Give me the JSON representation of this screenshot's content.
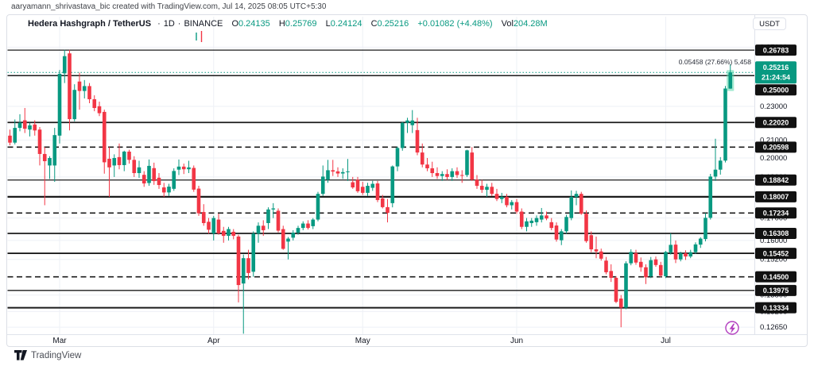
{
  "attribution": "aaryamann_shrivastava_bic created with TradingView.com, Jul 14, 2025 08:05 UTC+5:30",
  "watermark": {
    "logo_text": "TradingView"
  },
  "legend": {
    "symbol": "Hedera Hashgraph / TetherUS",
    "sep": "·",
    "interval": "1D",
    "exchange": "BINANCE",
    "o_label": "O",
    "o": "0.24135",
    "h_label": "H",
    "h": "0.25769",
    "l_label": "L",
    "l": "0.24124",
    "c_label": "C",
    "c": "0.25216",
    "change": "+0.01082 (+4.48%)",
    "vol_label": "Vol",
    "vol": "204.28M"
  },
  "annotation": {
    "measure": "0.05458 (27.66%) 5,458"
  },
  "axis": {
    "currency": "USDT",
    "countdown": "21:24:54",
    "current_price": "0.25216",
    "price_ticks": [
      {
        "price": 0.27,
        "label": "0.27000"
      },
      {
        "price": 0.23,
        "label": "0.23000"
      },
      {
        "price": 0.21,
        "label": "0.21000"
      },
      {
        "price": 0.2,
        "label": "0.20000"
      },
      {
        "price": 0.19,
        "label": "0.19000"
      },
      {
        "price": 0.17,
        "label": "0.17000"
      },
      {
        "price": 0.16,
        "label": "0.16000"
      },
      {
        "price": 0.152,
        "label": "0.15200"
      },
      {
        "price": 0.138,
        "label": "0.13800"
      },
      {
        "price": 0.132,
        "label": "0.13200"
      },
      {
        "price": 0.1265,
        "label": "0.12650"
      }
    ],
    "month_ticks": [
      {
        "label": "Mar",
        "i": 10
      },
      {
        "label": "Apr",
        "i": 41
      },
      {
        "label": "May",
        "i": 71
      },
      {
        "label": "Jun",
        "i": 102
      },
      {
        "label": "Jul",
        "i": 132
      }
    ]
  },
  "levels": [
    {
      "price": 0.26783,
      "label": "0.26783",
      "style": "solid",
      "w": 1.3
    },
    {
      "price": 0.25,
      "label": "0.25000",
      "style": "solid",
      "w": 1.5
    },
    {
      "price": 0.2202,
      "label": "0.22020",
      "style": "solid",
      "w": 1.7
    },
    {
      "price": 0.20598,
      "label": "0.20598",
      "style": "dashed",
      "w": 1.6
    },
    {
      "price": 0.18842,
      "label": "0.18842",
      "style": "solid",
      "w": 1.2
    },
    {
      "price": 0.18007,
      "label": "0.18007",
      "style": "solid",
      "w": 2.2
    },
    {
      "price": 0.17234,
      "label": "0.17234",
      "style": "dashed",
      "w": 1.6
    },
    {
      "price": 0.16308,
      "label": "0.16308",
      "style": "solid",
      "w": 1.7
    },
    {
      "price": 0.15452,
      "label": "0.15452",
      "style": "solid",
      "w": 1.8
    },
    {
      "price": 0.145,
      "label": "0.14500",
      "style": "dashed",
      "w": 1.6
    },
    {
      "price": 0.13975,
      "label": "0.13975",
      "style": "solid",
      "w": 1.4
    },
    {
      "price": 0.13334,
      "label": "0.13334",
      "style": "solid",
      "w": 2.0
    }
  ],
  "colors": {
    "up": "#089981",
    "down": "#f23645",
    "level": "#1b1b1b",
    "chip_bg": "#111111",
    "grid": "#eef0f6",
    "border": "#e0e3eb",
    "halo": "#57d9ab",
    "boost": "#b23dbf"
  },
  "chart_data": {
    "type": "candlestick",
    "title": "Hedera Hashgraph / TetherUS · 1D · BINANCE",
    "symbol": "HBAR/USDT",
    "interval": "1D",
    "exchange": "BINANCE",
    "scale": "log",
    "ylim": [
      0.123,
      0.272
    ],
    "x_axis": [
      "Mar",
      "Apr",
      "May",
      "Jun",
      "Jul"
    ],
    "grid": true,
    "legend_position": "top-left",
    "last_change": "+0.01082 (+4.48%)",
    "last_volume": "204.28M",
    "candles": [
      [
        "Feb 19",
        0.2125,
        0.216,
        0.207,
        0.2085
      ],
      [
        "Feb 20",
        0.2085,
        0.222,
        0.2075,
        0.217
      ],
      [
        "Feb 21",
        0.217,
        0.2252,
        0.215,
        0.22
      ],
      [
        "Feb 22",
        0.2215,
        0.229,
        0.214,
        0.2165
      ],
      [
        "Feb 23",
        0.216,
        0.22,
        0.212,
        0.2185
      ],
      [
        "Feb 24",
        0.219,
        0.2215,
        0.2125,
        0.2155
      ],
      [
        "Feb 25",
        0.216,
        0.2175,
        0.196,
        0.2022
      ],
      [
        "Feb 26",
        0.2022,
        0.206,
        0.176,
        0.1983
      ],
      [
        "Feb 27",
        0.196,
        0.201,
        0.189,
        0.2
      ],
      [
        "Feb 28",
        0.196,
        0.217,
        0.1875,
        0.2128
      ],
      [
        "Mar 1",
        0.2125,
        0.2538,
        0.208,
        0.2512
      ],
      [
        "Mar 2",
        0.2515,
        0.268,
        0.245,
        0.2635
      ],
      [
        "Mar 3",
        0.2655,
        0.268,
        0.2155,
        0.2222
      ],
      [
        "Mar 4",
        0.2222,
        0.2442,
        0.2209,
        0.2405
      ],
      [
        "Mar 5",
        0.246,
        0.252,
        0.228,
        0.2398
      ],
      [
        "Mar 6",
        0.2398,
        0.247,
        0.235,
        0.243
      ],
      [
        "Mar 7",
        0.243,
        0.245,
        0.232,
        0.2345
      ],
      [
        "Mar 8",
        0.2345,
        0.237,
        0.227,
        0.229
      ],
      [
        "Mar 9",
        0.2301,
        0.233,
        0.224,
        0.2258
      ],
      [
        "Mar 10",
        0.2266,
        0.228,
        0.1917,
        0.1977
      ],
      [
        "Mar 11",
        0.1996,
        0.206,
        0.18,
        0.195
      ],
      [
        "Mar 12",
        0.196,
        0.202,
        0.19,
        0.2
      ],
      [
        "Mar 13",
        0.2005,
        0.208,
        0.194,
        0.1962
      ],
      [
        "Mar 14",
        0.1962,
        0.204,
        0.193,
        0.2035
      ],
      [
        "Mar 15",
        0.2035,
        0.2045,
        0.197,
        0.199
      ],
      [
        "Mar 16",
        0.199,
        0.201,
        0.19,
        0.192
      ],
      [
        "Mar 17",
        0.192,
        0.1985,
        0.1895,
        0.195
      ],
      [
        "Mar 18",
        0.1911,
        0.193,
        0.185,
        0.1867
      ],
      [
        "Mar 19",
        0.1869,
        0.1992,
        0.1855,
        0.1958
      ],
      [
        "Mar 20",
        0.1946,
        0.1975,
        0.186,
        0.1879
      ],
      [
        "Mar 21",
        0.1896,
        0.192,
        0.184,
        0.1859
      ],
      [
        "Mar 22",
        0.1847,
        0.187,
        0.18,
        0.1822
      ],
      [
        "Mar 23",
        0.1822,
        0.1865,
        0.1805,
        0.1851
      ],
      [
        "Mar 24",
        0.184,
        0.1945,
        0.183,
        0.1931
      ],
      [
        "Mar 25",
        0.1938,
        0.1992,
        0.191,
        0.1954
      ],
      [
        "Mar 26",
        0.1954,
        0.197,
        0.1915,
        0.194
      ],
      [
        "Mar 27",
        0.194,
        0.1985,
        0.192,
        0.195
      ],
      [
        "Mar 28",
        0.1947,
        0.196,
        0.1825,
        0.1836
      ],
      [
        "Mar 29",
        0.1841,
        0.1855,
        0.171,
        0.1722
      ],
      [
        "Mar 30",
        0.1728,
        0.1765,
        0.1665,
        0.1677
      ],
      [
        "Mar 31",
        0.1683,
        0.17,
        0.163,
        0.1647
      ],
      [
        "Apr 1",
        0.1631,
        0.171,
        0.16,
        0.17
      ],
      [
        "Apr 2",
        0.1693,
        0.172,
        0.1625,
        0.1631
      ],
      [
        "Apr 3",
        0.1642,
        0.166,
        0.159,
        0.162
      ],
      [
        "Apr 4",
        0.162,
        0.166,
        0.16,
        0.165
      ],
      [
        "Apr 5",
        0.1638,
        0.165,
        0.1605,
        0.162
      ],
      [
        "Apr 6",
        0.1617,
        0.1625,
        0.1353,
        0.1418
      ],
      [
        "Apr 7",
        0.1424,
        0.154,
        0.1243,
        0.1525
      ],
      [
        "Apr 8",
        0.1525,
        0.156,
        0.144,
        0.1465
      ],
      [
        "Apr 9",
        0.147,
        0.164,
        0.145,
        0.163
      ],
      [
        "Apr 10",
        0.163,
        0.168,
        0.159,
        0.1665
      ],
      [
        "Apr 11",
        0.1665,
        0.169,
        0.162,
        0.1645
      ],
      [
        "Apr 12",
        0.1677,
        0.175,
        0.165,
        0.174
      ],
      [
        "Apr 13",
        0.174,
        0.177,
        0.17,
        0.1745
      ],
      [
        "Apr 14",
        0.1734,
        0.1745,
        0.1635,
        0.1643
      ],
      [
        "Apr 15",
        0.165,
        0.1665,
        0.156,
        0.1564
      ],
      [
        "Apr 16",
        0.1595,
        0.1615,
        0.152,
        0.1608
      ],
      [
        "Apr 17",
        0.1612,
        0.1645,
        0.16,
        0.1634
      ],
      [
        "Apr 18",
        0.1634,
        0.1665,
        0.1625,
        0.1655
      ],
      [
        "Apr 19",
        0.1655,
        0.1685,
        0.1645,
        0.1675
      ],
      [
        "Apr 20",
        0.1675,
        0.169,
        0.1648,
        0.1655
      ],
      [
        "Apr 21",
        0.1663,
        0.17,
        0.165,
        0.1693
      ],
      [
        "Apr 22",
        0.1693,
        0.1825,
        0.1685,
        0.1815
      ],
      [
        "Apr 23",
        0.1815,
        0.196,
        0.1805,
        0.1902
      ],
      [
        "Apr 24",
        0.1886,
        0.199,
        0.187,
        0.1935
      ],
      [
        "Apr 25",
        0.1935,
        0.199,
        0.1905,
        0.1928
      ],
      [
        "Apr 26",
        0.1929,
        0.195,
        0.19,
        0.1918
      ],
      [
        "Apr 27",
        0.1918,
        0.1945,
        0.189,
        0.1925
      ],
      [
        "Apr 28",
        0.1925,
        0.1995,
        0.188,
        0.1929
      ],
      [
        "Apr 29",
        0.1873,
        0.19,
        0.184,
        0.1847
      ],
      [
        "Apr 30",
        0.1886,
        0.19,
        0.182,
        0.1828
      ],
      [
        "May 1",
        0.185,
        0.1875,
        0.181,
        0.182
      ],
      [
        "May 2",
        0.182,
        0.187,
        0.1805,
        0.1855
      ],
      [
        "May 3",
        0.1845,
        0.188,
        0.183,
        0.1865
      ],
      [
        "May 4",
        0.1867,
        0.188,
        0.1775,
        0.1785
      ],
      [
        "May 5",
        0.1793,
        0.181,
        0.1745,
        0.1751
      ],
      [
        "May 6",
        0.1751,
        0.179,
        0.168,
        0.1724
      ],
      [
        "May 7",
        0.177,
        0.196,
        0.175,
        0.1955
      ],
      [
        "May 8",
        0.1955,
        0.2063,
        0.193,
        0.2055
      ],
      [
        "May 9",
        0.2055,
        0.2205,
        0.204,
        0.22
      ],
      [
        "May 10",
        0.22,
        0.223,
        0.214,
        0.2214
      ],
      [
        "May 11",
        0.2186,
        0.2277,
        0.214,
        0.2214
      ],
      [
        "May 12",
        0.2157,
        0.223,
        0.2015,
        0.203
      ],
      [
        "May 13",
        0.203,
        0.208,
        0.195,
        0.1965
      ],
      [
        "May 14",
        0.1965,
        0.2,
        0.193,
        0.1945
      ],
      [
        "May 15",
        0.1945,
        0.198,
        0.19,
        0.192
      ],
      [
        "May 16",
        0.192,
        0.195,
        0.189,
        0.1905
      ],
      [
        "May 17",
        0.1905,
        0.193,
        0.188,
        0.1915
      ],
      [
        "May 18",
        0.1915,
        0.194,
        0.1885,
        0.19
      ],
      [
        "May 19",
        0.19,
        0.1945,
        0.188,
        0.193
      ],
      [
        "May 20",
        0.193,
        0.195,
        0.1895,
        0.191
      ],
      [
        "May 21",
        0.191,
        0.1935,
        0.187,
        0.1908
      ],
      [
        "May 22",
        0.191,
        0.2045,
        0.19,
        0.2042
      ],
      [
        "May 23",
        0.203,
        0.206,
        0.188,
        0.1886
      ],
      [
        "May 24",
        0.1886,
        0.191,
        0.184,
        0.1855
      ],
      [
        "May 25",
        0.1855,
        0.1885,
        0.182,
        0.1835
      ],
      [
        "May 26",
        0.1835,
        0.1865,
        0.18,
        0.185
      ],
      [
        "May 27",
        0.185,
        0.187,
        0.1805,
        0.1815
      ],
      [
        "May 28",
        0.1815,
        0.184,
        0.178,
        0.179
      ],
      [
        "May 29",
        0.179,
        0.182,
        0.177,
        0.18
      ],
      [
        "May 30",
        0.18,
        0.1815,
        0.175,
        0.176
      ],
      [
        "May 31",
        0.176,
        0.1785,
        0.174,
        0.1775
      ],
      [
        "Jun 1",
        0.1775,
        0.179,
        0.172,
        0.173
      ],
      [
        "Jun 2",
        0.173,
        0.1745,
        0.165,
        0.166
      ],
      [
        "Jun 3",
        0.166,
        0.17,
        0.164,
        0.1685
      ],
      [
        "Jun 4",
        0.1677,
        0.17,
        0.166,
        0.1688
      ],
      [
        "Jun 5",
        0.1681,
        0.1712,
        0.1665,
        0.17
      ],
      [
        "Jun 6",
        0.1693,
        0.1747,
        0.168,
        0.1712
      ],
      [
        "Jun 7",
        0.1712,
        0.173,
        0.169,
        0.1698
      ],
      [
        "Jun 8",
        0.1681,
        0.17,
        0.1645,
        0.1655
      ],
      [
        "Jun 9",
        0.1666,
        0.168,
        0.1595,
        0.1604
      ],
      [
        "Jun 10",
        0.1601,
        0.165,
        0.158,
        0.164
      ],
      [
        "Jun 11",
        0.164,
        0.1715,
        0.163,
        0.1705
      ],
      [
        "Jun 12",
        0.17,
        0.1832,
        0.169,
        0.18
      ],
      [
        "Jun 13",
        0.18,
        0.183,
        0.176,
        0.1815
      ],
      [
        "Jun 14",
        0.1815,
        0.1825,
        0.1715,
        0.172
      ],
      [
        "Jun 15",
        0.172,
        0.1735,
        0.159,
        0.1597
      ],
      [
        "Jun 16",
        0.1623,
        0.164,
        0.155,
        0.1562
      ],
      [
        "Jun 17",
        0.1562,
        0.1617,
        0.1525,
        0.1553
      ],
      [
        "Jun 18",
        0.1553,
        0.1565,
        0.1515,
        0.1523
      ],
      [
        "Jun 19",
        0.1515,
        0.153,
        0.146,
        0.1468
      ],
      [
        "Jun 20",
        0.1473,
        0.15,
        0.143,
        0.1446
      ],
      [
        "Jun 21",
        0.1446,
        0.1452,
        0.135,
        0.1355
      ],
      [
        "Jun 22",
        0.1367,
        0.138,
        0.1265,
        0.1334
      ],
      [
        "Jun 23",
        0.1334,
        0.1512,
        0.1328,
        0.1504
      ],
      [
        "Jun 24",
        0.1504,
        0.1562,
        0.1496,
        0.1551
      ],
      [
        "Jun 25",
        0.1546,
        0.156,
        0.1498,
        0.1507
      ],
      [
        "Jun 26",
        0.151,
        0.1528,
        0.147,
        0.1488
      ],
      [
        "Jun 27",
        0.1488,
        0.15,
        0.1422,
        0.1448
      ],
      [
        "Jun 28",
        0.1452,
        0.153,
        0.1445,
        0.1517
      ],
      [
        "Jun 29",
        0.152,
        0.1532,
        0.149,
        0.1497
      ],
      [
        "Jun 30",
        0.1497,
        0.151,
        0.1448,
        0.1455
      ],
      [
        "Jul 1",
        0.1452,
        0.1555,
        0.1445,
        0.1551
      ],
      [
        "Jul 2",
        0.1549,
        0.1631,
        0.154,
        0.1581
      ],
      [
        "Jul 3",
        0.1582,
        0.16,
        0.1505,
        0.152
      ],
      [
        "Jul 4",
        0.152,
        0.1552,
        0.1512,
        0.1545
      ],
      [
        "Jul 5",
        0.1545,
        0.1558,
        0.1518,
        0.1532
      ],
      [
        "Jul 6",
        0.1532,
        0.156,
        0.1525,
        0.155
      ],
      [
        "Jul 7",
        0.155,
        0.1592,
        0.1542,
        0.1583
      ],
      [
        "Jul 8",
        0.1582,
        0.1614,
        0.1568,
        0.1608
      ],
      [
        "Jul 9",
        0.1606,
        0.1723,
        0.1596,
        0.1701
      ],
      [
        "Jul 10",
        0.1701,
        0.1916,
        0.1693,
        0.1902
      ],
      [
        "Jul 11",
        0.1902,
        0.2107,
        0.188,
        0.1938
      ],
      [
        "Jul 12",
        0.1938,
        0.2005,
        0.1912,
        0.1986
      ],
      [
        "Jul 13",
        0.1986,
        0.2431,
        0.1976,
        0.2414
      ],
      [
        "Jul 14",
        0.24135,
        0.25769,
        0.24124,
        0.25216
      ]
    ]
  }
}
